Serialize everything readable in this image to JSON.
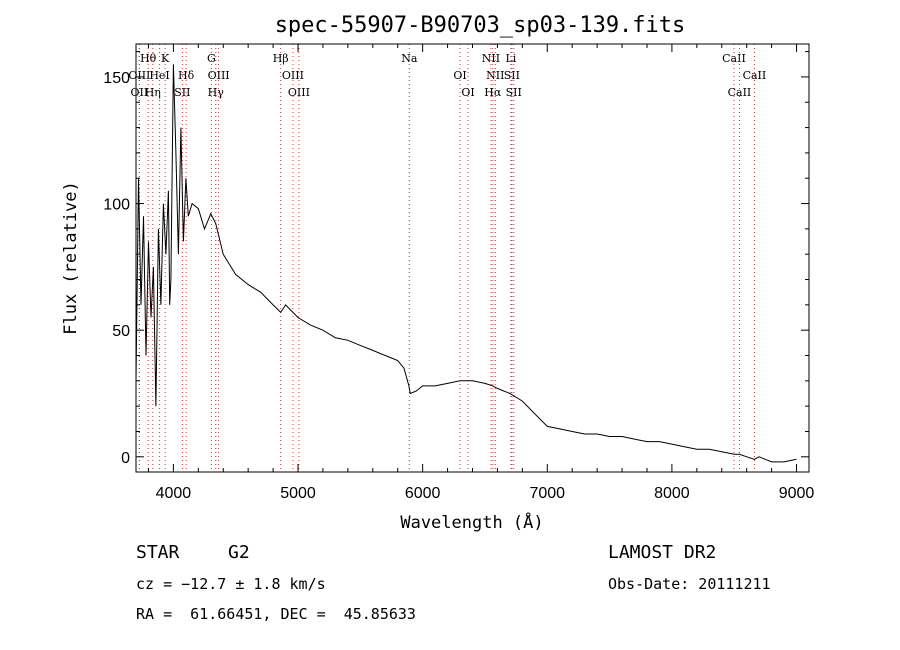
{
  "chart_data": {
    "type": "line",
    "title": "spec-55907-B90703_sp03-139.fits",
    "xlabel": "Wavelength (Å)",
    "ylabel": "Flux (relative)",
    "xlim": [
      3700,
      9100
    ],
    "ylim": [
      -6,
      163
    ],
    "xticks": [
      4000,
      5000,
      6000,
      7000,
      8000,
      9000
    ],
    "yticks": [
      0,
      50,
      100,
      150
    ],
    "series": [
      {
        "x": [
          3700,
          3720,
          3740,
          3760,
          3780,
          3800,
          3820,
          3840,
          3860,
          3880,
          3900,
          3920,
          3940,
          3960,
          3970,
          3980,
          4000,
          4020,
          4040,
          4060,
          4080,
          4100,
          4120,
          4150,
          4200,
          4250,
          4300,
          4340,
          4400,
          4500,
          4600,
          4700,
          4800,
          4861,
          4900,
          5000,
          5100,
          5200,
          5300,
          5400,
          5500,
          5600,
          5700,
          5800,
          5850,
          5890,
          5900,
          5950,
          6000,
          6100,
          6200,
          6300,
          6400,
          6500,
          6563,
          6600,
          6700,
          6800,
          6900,
          7000,
          7100,
          7200,
          7300,
          7400,
          7500,
          7600,
          7700,
          7800,
          7900,
          8000,
          8100,
          8200,
          8300,
          8400,
          8500,
          8542,
          8600,
          8662,
          8700,
          8800,
          8900,
          9000
        ],
        "y": [
          30,
          110,
          60,
          95,
          40,
          85,
          55,
          75,
          20,
          90,
          60,
          100,
          80,
          105,
          60,
          70,
          155,
          120,
          80,
          130,
          85,
          110,
          95,
          100,
          98,
          90,
          96,
          92,
          80,
          72,
          68,
          65,
          60,
          57,
          60,
          55,
          52,
          50,
          47,
          46,
          44,
          42,
          40,
          38,
          35,
          28,
          25,
          26,
          28,
          28,
          29,
          30,
          30,
          29,
          28,
          27,
          25,
          22,
          17,
          12,
          11,
          10,
          9,
          9,
          8,
          8,
          7,
          6,
          6,
          5,
          4,
          3,
          3,
          2,
          1,
          1,
          0,
          -1,
          0,
          -2,
          -2,
          -1
        ]
      }
    ],
    "line_markers": [
      {
        "name": "Hθ",
        "wl": 3798,
        "row": 0
      },
      {
        "name": "K",
        "wl": 3934,
        "row": 0
      },
      {
        "name": "G",
        "wl": 4305,
        "row": 0
      },
      {
        "name": "Hβ",
        "wl": 4861,
        "row": 0
      },
      {
        "name": "Na",
        "wl": 5893,
        "row": 0
      },
      {
        "name": "NII",
        "wl": 6548,
        "row": 0
      },
      {
        "name": "Li",
        "wl": 6708,
        "row": 0
      },
      {
        "name": "CaII",
        "wl": 8498,
        "row": 0
      },
      {
        "name": "OIII",
        "wl": 3727,
        "row": 1
      },
      {
        "name": "HeI",
        "wl": 3889,
        "row": 1
      },
      {
        "name": "Hδ",
        "wl": 4102,
        "row": 1
      },
      {
        "name": "OIII",
        "wl": 4363,
        "row": 1
      },
      {
        "name": "OIII",
        "wl": 4959,
        "row": 1
      },
      {
        "name": "OI",
        "wl": 6300,
        "row": 1
      },
      {
        "name": "NII",
        "wl": 6583,
        "row": 1
      },
      {
        "name": "SII",
        "wl": 6716,
        "row": 1
      },
      {
        "name": "CaII",
        "wl": 8662,
        "row": 1
      },
      {
        "name": "OII",
        "wl": 3727,
        "row": 2
      },
      {
        "name": "Hη",
        "wl": 3835,
        "row": 2
      },
      {
        "name": "SII",
        "wl": 4072,
        "row": 2
      },
      {
        "name": "Hγ",
        "wl": 4340,
        "row": 2
      },
      {
        "name": "OIII",
        "wl": 5007,
        "row": 2
      },
      {
        "name": "OI",
        "wl": 6364,
        "row": 2
      },
      {
        "name": "Hα",
        "wl": 6563,
        "row": 2
      },
      {
        "name": "SII",
        "wl": 6731,
        "row": 2
      },
      {
        "name": "CaII",
        "wl": 8542,
        "row": 2
      }
    ]
  },
  "info": {
    "class": "STAR",
    "subclass": "G2",
    "survey": "LAMOST DR2",
    "cz": "cz = −12.7 ± 1.8 km/s",
    "obs_date": "Obs-Date: 20111211",
    "coords": "RA =  61.66451, DEC =  45.85633"
  }
}
